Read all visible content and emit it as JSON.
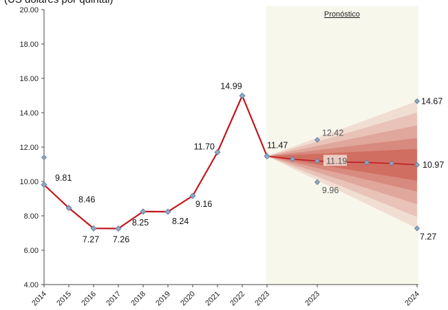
{
  "chart_data": {
    "type": "line",
    "unit_caption": "(US dólares por quintal)",
    "forecast_label": "Pronóstico",
    "ylim": [
      4,
      20
    ],
    "y_ticks": [
      "4.00",
      "6.00",
      "8.00",
      "10.00",
      "12.00",
      "14.00",
      "16.00",
      "18.00",
      "20.00"
    ],
    "x_tick_labels": [
      "2014",
      "2015",
      "2016",
      "2017",
      "2018",
      "2019",
      "2020",
      "2021",
      "2022",
      "2023",
      "2023",
      "2024"
    ],
    "historical": {
      "x": [
        "2014",
        "2015",
        "2016",
        "2017",
        "2018",
        "2019",
        "2020",
        "2021",
        "2022",
        "2023"
      ],
      "values": [
        9.81,
        8.46,
        7.27,
        7.26,
        8.25,
        8.24,
        9.16,
        11.7,
        14.99,
        11.47
      ],
      "labels": [
        "9.81",
        "8.46",
        "7.27",
        "7.26",
        "8.25",
        "8.24",
        "9.16",
        "11.70",
        "14.99",
        "11.47"
      ]
    },
    "extra_marker_2014": 11.4,
    "forecast": {
      "central": [
        11.47,
        11.3,
        11.19,
        11.13,
        11.1,
        11.05,
        10.97
      ],
      "upper_2023": 12.42,
      "lower_2023": 9.96,
      "upper_2024": 14.67,
      "lower_2024": 7.27,
      "labels": {
        "upper_2023": "12.42",
        "mid_2023": "11.19",
        "lower_2023": "9.96",
        "upper_2024": "14.67",
        "mid_2024": "10.97",
        "lower_2024": "7.27"
      }
    },
    "colors": {
      "line": "#c0171c",
      "marker": "#8fa6c4",
      "forecast_bg": "#f8f7ec",
      "fan": "#c0392b"
    },
    "grid": false
  }
}
